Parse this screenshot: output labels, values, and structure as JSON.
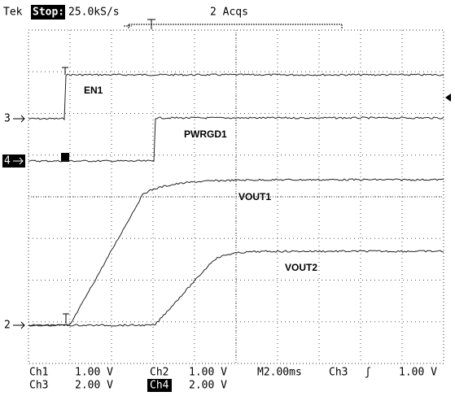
{
  "header": {
    "brand": "Tek",
    "state": "Stop:",
    "rate": "25.0kS/s",
    "acquisitions": "2 Acqs"
  },
  "channel_markers": [
    "3",
    "4",
    "2"
  ],
  "trace_labels": [
    "EN1",
    "PWRGD1",
    "VOUT1",
    "VOUT2"
  ],
  "footer": {
    "rows": [
      [
        "Ch1",
        "1.00 V",
        "Ch2",
        "1.00 V",
        "M2.00ms",
        "Ch3",
        "ʃ",
        "1.00 V"
      ],
      [
        "Ch3",
        "2.00 V",
        "Ch4",
        "2.00 V"
      ]
    ]
  }
}
